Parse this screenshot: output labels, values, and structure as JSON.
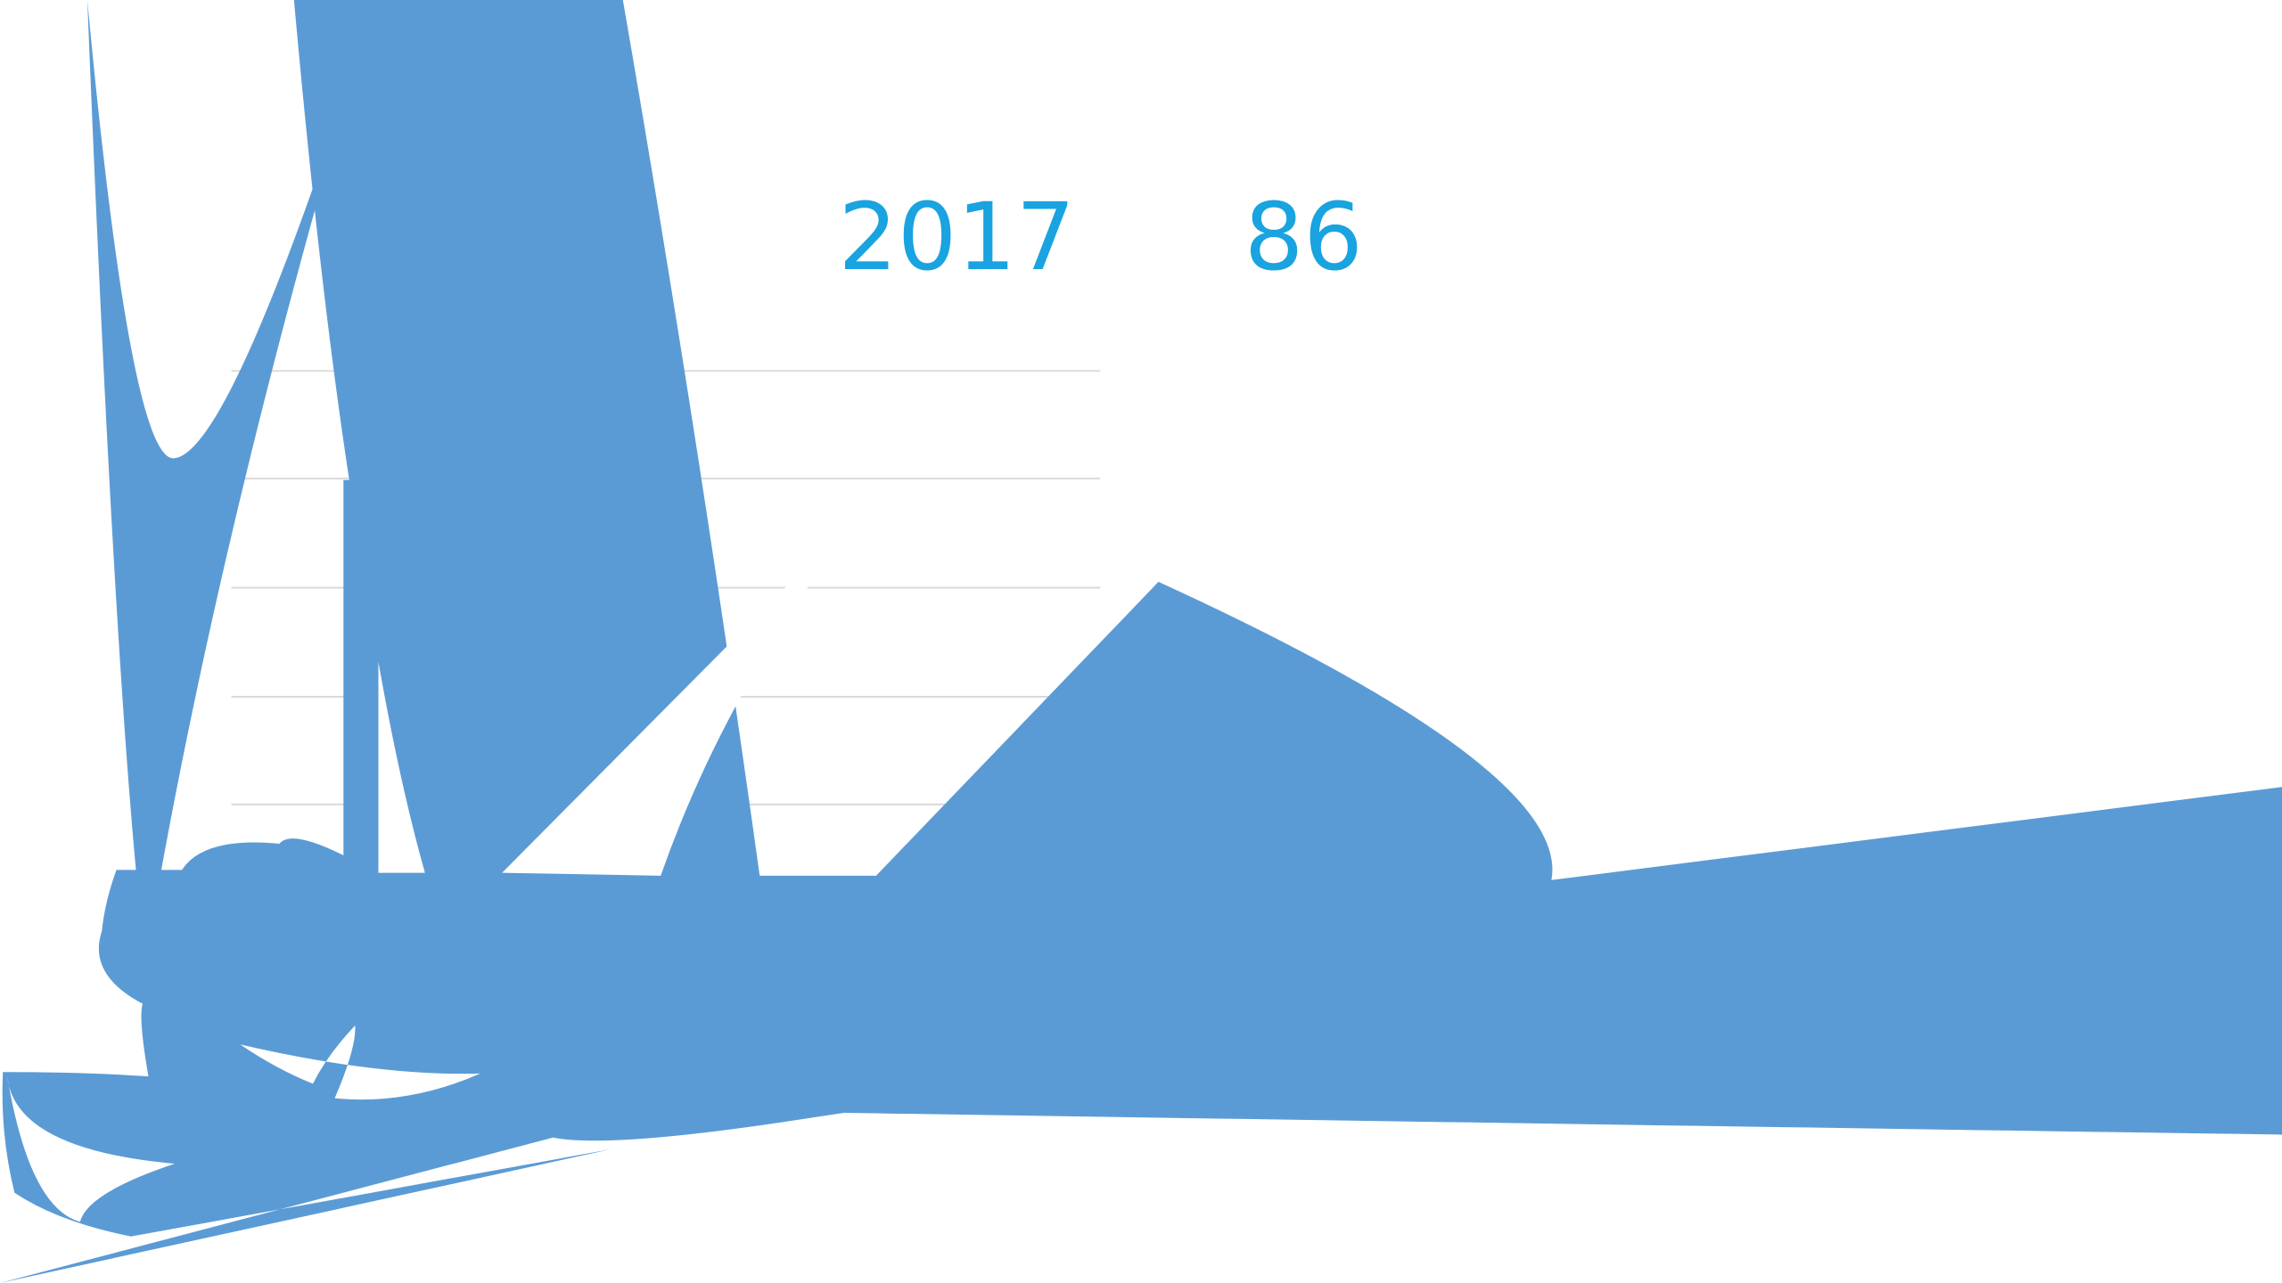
{
  "header": {
    "year": "2017",
    "value": "86"
  }
}
